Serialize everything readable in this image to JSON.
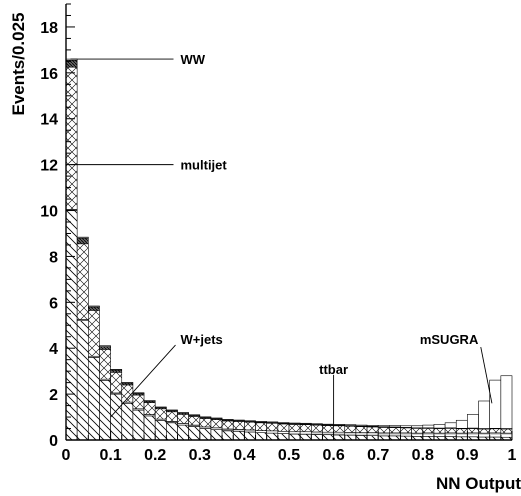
{
  "chart_data": {
    "type": "bar",
    "stacked": true,
    "title": "",
    "xlabel": "NN Output",
    "ylabel": "Events/0.025",
    "xlim": [
      0,
      1
    ],
    "ylim": [
      0,
      19
    ],
    "bin_width": 0.025,
    "x_ticks": [
      {
        "v": 0,
        "label": "0"
      },
      {
        "v": 0.1,
        "label": "0.1"
      },
      {
        "v": 0.2,
        "label": "0.2"
      },
      {
        "v": 0.3,
        "label": "0.3"
      },
      {
        "v": 0.4,
        "label": "0.4"
      },
      {
        "v": 0.5,
        "label": "0.5"
      },
      {
        "v": 0.6,
        "label": "0.6"
      },
      {
        "v": 0.7,
        "label": "0.7"
      },
      {
        "v": 0.8,
        "label": "0.8"
      },
      {
        "v": 0.9,
        "label": "0.9"
      },
      {
        "v": 1,
        "label": "1"
      }
    ],
    "y_ticks": [
      {
        "v": 0,
        "label": "0"
      },
      {
        "v": 2,
        "label": "2"
      },
      {
        "v": 4,
        "label": "4"
      },
      {
        "v": 6,
        "label": "6"
      },
      {
        "v": 8,
        "label": "8"
      },
      {
        "v": 10,
        "label": "10"
      },
      {
        "v": 12,
        "label": "12"
      },
      {
        "v": 14,
        "label": "14"
      },
      {
        "v": 16,
        "label": "16"
      },
      {
        "v": 18,
        "label": "18"
      }
    ],
    "series": [
      {
        "name": "W+jets",
        "fill": "wjets-hatch",
        "values": [
          10.0,
          5.2,
          3.6,
          2.6,
          2.0,
          1.6,
          1.3,
          1.05,
          0.85,
          0.75,
          0.65,
          0.58,
          0.5,
          0.45,
          0.4,
          0.38,
          0.35,
          0.32,
          0.3,
          0.28,
          0.26,
          0.25,
          0.24,
          0.23,
          0.22,
          0.21,
          0.2,
          0.19,
          0.18,
          0.18,
          0.17,
          0.16,
          0.16,
          0.15,
          0.15,
          0.14,
          0.14,
          0.13,
          0.13,
          0.12
        ]
      },
      {
        "name": "ttbar",
        "fill": "ttbar-light",
        "values": [
          0.05,
          0.05,
          0.05,
          0.05,
          0.05,
          0.05,
          0.06,
          0.06,
          0.06,
          0.06,
          0.07,
          0.07,
          0.07,
          0.08,
          0.08,
          0.08,
          0.09,
          0.09,
          0.1,
          0.1,
          0.1,
          0.11,
          0.11,
          0.11,
          0.12,
          0.12,
          0.12,
          0.13,
          0.13,
          0.13,
          0.14,
          0.14,
          0.15,
          0.15,
          0.16,
          0.16,
          0.17,
          0.17,
          0.18,
          0.18
        ]
      },
      {
        "name": "multijet",
        "fill": "multijet-cross",
        "values": [
          6.2,
          3.3,
          2.0,
          1.3,
          0.9,
          0.75,
          0.6,
          0.52,
          0.45,
          0.42,
          0.4,
          0.38,
          0.37,
          0.36,
          0.35,
          0.35,
          0.34,
          0.34,
          0.33,
          0.32,
          0.32,
          0.31,
          0.3,
          0.29,
          0.28,
          0.27,
          0.26,
          0.25,
          0.24,
          0.23,
          0.22,
          0.21,
          0.2,
          0.2,
          0.2,
          0.19,
          0.19,
          0.18,
          0.18,
          0.18
        ]
      },
      {
        "name": "WW",
        "fill": "ww-dark",
        "values": [
          0.3,
          0.25,
          0.15,
          0.12,
          0.1,
          0.08,
          0.07,
          0.06,
          0.05,
          0.05,
          0.05,
          0.04,
          0.04,
          0.04,
          0.04,
          0.03,
          0.03,
          0.03,
          0.03,
          0.03,
          0.03,
          0.03,
          0.03,
          0.03,
          0.03,
          0.03,
          0.03,
          0.03,
          0.03,
          0.03,
          0.02,
          0.02,
          0.02,
          0.02,
          0.02,
          0.02,
          0.02,
          0.02,
          0.02,
          0.02
        ]
      },
      {
        "name": "mSUGRA",
        "fill": "msugra-open",
        "values": [
          0.05,
          0.04,
          0.04,
          0.04,
          0.03,
          0.03,
          0.03,
          0.03,
          0.03,
          0.03,
          0.03,
          0.03,
          0.03,
          0.03,
          0.03,
          0.03,
          0.03,
          0.03,
          0.03,
          0.03,
          0.03,
          0.03,
          0.03,
          0.03,
          0.03,
          0.04,
          0.04,
          0.04,
          0.05,
          0.06,
          0.07,
          0.09,
          0.12,
          0.16,
          0.22,
          0.35,
          0.6,
          1.2,
          2.1,
          2.3
        ]
      }
    ],
    "annotations": [
      {
        "text": "WW",
        "target": "WW",
        "label_x": 0.25,
        "label_y": 16.6,
        "point_x": 0.01,
        "point_y": 16.6
      },
      {
        "text": "multijet",
        "target": "multijet",
        "label_x": 0.25,
        "label_y": 12.0,
        "point_x": 0.01,
        "point_y": 12.0
      },
      {
        "text": "W+jets",
        "target": "W+jets",
        "label_x": 0.25,
        "label_y": 4.4,
        "point_x": 0.1,
        "point_y": 1.0
      },
      {
        "text": "ttbar",
        "target": "ttbar",
        "label_x": 0.6,
        "label_y": 3.1,
        "point_x": 0.6,
        "point_y": 0.7
      },
      {
        "text": "mSUGRA",
        "target": "mSUGRA",
        "label_x": 0.85,
        "label_y": 4.4,
        "point_x": 0.955,
        "point_y": 1.6
      }
    ],
    "grid": false,
    "legend": "none"
  }
}
